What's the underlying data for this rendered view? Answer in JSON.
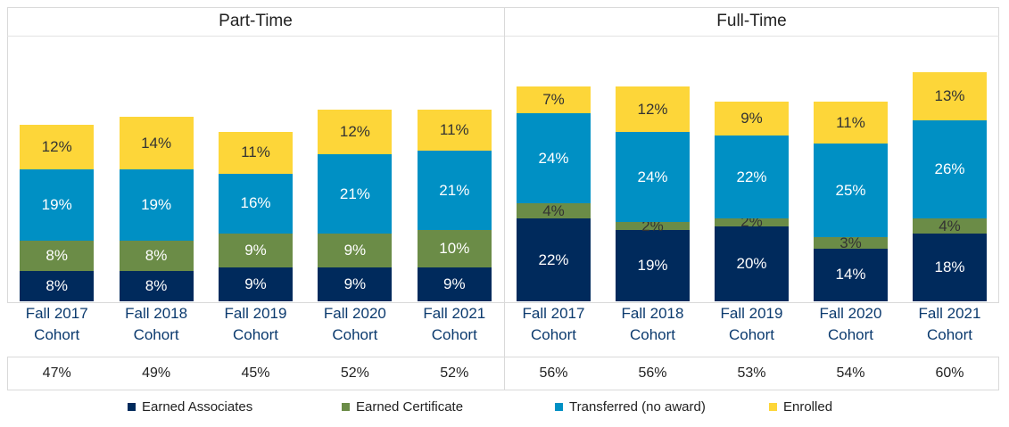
{
  "chart_data": [
    {
      "type": "bar",
      "stacked": true,
      "title": "Part-Time",
      "categories": [
        "Fall 2017 Cohort",
        "Fall 2018 Cohort",
        "Fall 2019 Cohort",
        "Fall 2020 Cohort",
        "Fall 2021 Cohort"
      ],
      "series": [
        {
          "name": "Earned Associates",
          "color": "#002a5c",
          "values": [
            8,
            8,
            9,
            9,
            9
          ],
          "value_labels": [
            "8%",
            "8%",
            "9%",
            "9%",
            "9%"
          ]
        },
        {
          "name": "Earned Certificate",
          "color": "#6b8c47",
          "values": [
            8,
            8,
            9,
            9,
            10
          ],
          "value_labels": [
            "8%",
            "8%",
            "9%",
            "9%",
            "10%"
          ]
        },
        {
          "name": "Transferred (no award)",
          "color": "#0090c4",
          "values": [
            19,
            19,
            16,
            21,
            21
          ],
          "value_labels": [
            "19%",
            "19%",
            "16%",
            "21%",
            "21%"
          ]
        },
        {
          "name": "Enrolled",
          "color": "#fdd639",
          "values": [
            12,
            14,
            11,
            12,
            11
          ],
          "value_labels": [
            "12%",
            "14%",
            "11%",
            "12%",
            "11%"
          ]
        }
      ],
      "totals": [
        47,
        49,
        45,
        52,
        52
      ],
      "total_labels": [
        "47%",
        "49%",
        "45%",
        "52%",
        "52%"
      ]
    },
    {
      "type": "bar",
      "stacked": true,
      "title": "Full-Time",
      "categories": [
        "Fall 2017 Cohort",
        "Fall 2018 Cohort",
        "Fall 2019 Cohort",
        "Fall 2020 Cohort",
        "Fall 2021 Cohort"
      ],
      "series": [
        {
          "name": "Earned Associates",
          "color": "#002a5c",
          "values": [
            22,
            19,
            20,
            14,
            18
          ],
          "value_labels": [
            "22%",
            "19%",
            "20%",
            "14%",
            "18%"
          ]
        },
        {
          "name": "Earned Certificate",
          "color": "#6b8c47",
          "values": [
            4,
            2,
            2,
            3,
            4
          ],
          "value_labels": [
            "4%",
            "2%",
            "2%",
            "3%",
            "4%"
          ]
        },
        {
          "name": "Transferred (no award)",
          "color": "#0090c4",
          "values": [
            24,
            24,
            22,
            25,
            26
          ],
          "value_labels": [
            "24%",
            "24%",
            "22%",
            "25%",
            "26%"
          ]
        },
        {
          "name": "Enrolled",
          "color": "#fdd639",
          "values": [
            7,
            12,
            9,
            11,
            13
          ],
          "value_labels": [
            "7%",
            "12%",
            "9%",
            "11%",
            "13%"
          ]
        }
      ],
      "totals": [
        56,
        56,
        53,
        54,
        60
      ],
      "total_labels": [
        "56%",
        "56%",
        "53%",
        "54%",
        "60%"
      ]
    }
  ]
}
